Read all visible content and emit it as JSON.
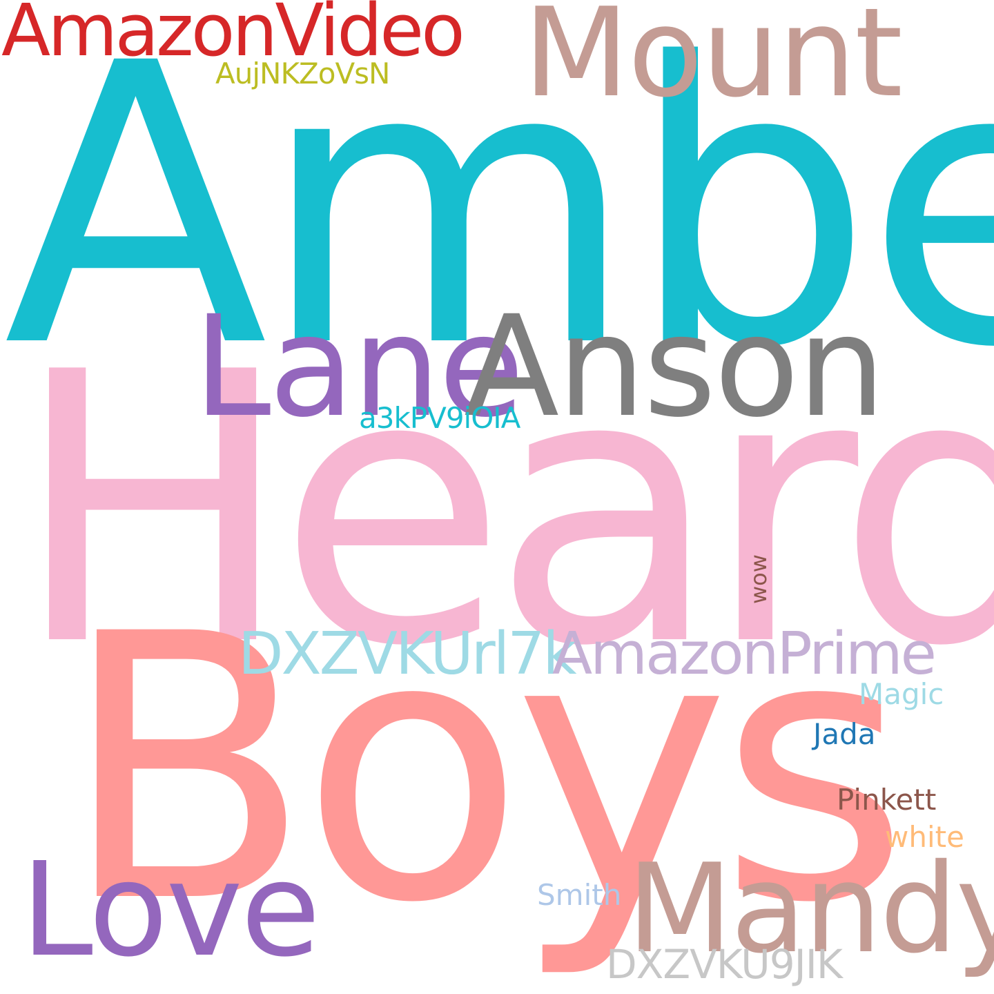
{
  "words": {
    "amber": {
      "text": "Amber",
      "color": "#17becf"
    },
    "heard": {
      "text": "Heard",
      "color": "#f7b6d2"
    },
    "boys": {
      "text": "Boys",
      "color": "#ff9896"
    },
    "mount": {
      "text": "Mount",
      "color": "#c49c94"
    },
    "amazonvideo": {
      "text": "AmazonVideo",
      "color": "#d62728"
    },
    "aujnk": {
      "text": "AujNKZoVsN",
      "color": "#bcbd22"
    },
    "lane": {
      "text": "Lane",
      "color": "#9467bd"
    },
    "anson": {
      "text": "Anson",
      "color": "#7f7f7f"
    },
    "a3kp": {
      "text": "a3kPV9iOIA",
      "color": "#17becf"
    },
    "dxzvkurl": {
      "text": "DXZVKUrl7k",
      "color": "#9edae5"
    },
    "amazonprime": {
      "text": "AmazonPrime",
      "color": "#c5b0d5"
    },
    "wow": {
      "text": "wow",
      "color": "#8c564b"
    },
    "magic": {
      "text": "Magic",
      "color": "#9edae5"
    },
    "jada": {
      "text": "Jada",
      "color": "#1f77b4"
    },
    "pinkett": {
      "text": "Pinkett",
      "color": "#8c564b"
    },
    "white": {
      "text": "white",
      "color": "#ffbb78"
    },
    "love": {
      "text": "Love",
      "color": "#9467bd"
    },
    "mandy": {
      "text": "Mandy",
      "color": "#c49c94"
    },
    "smith": {
      "text": "Smith",
      "color": "#aec7e8"
    },
    "dxzvku9": {
      "text": "DXZVKU9JIK",
      "color": "#c7c7c7"
    }
  }
}
